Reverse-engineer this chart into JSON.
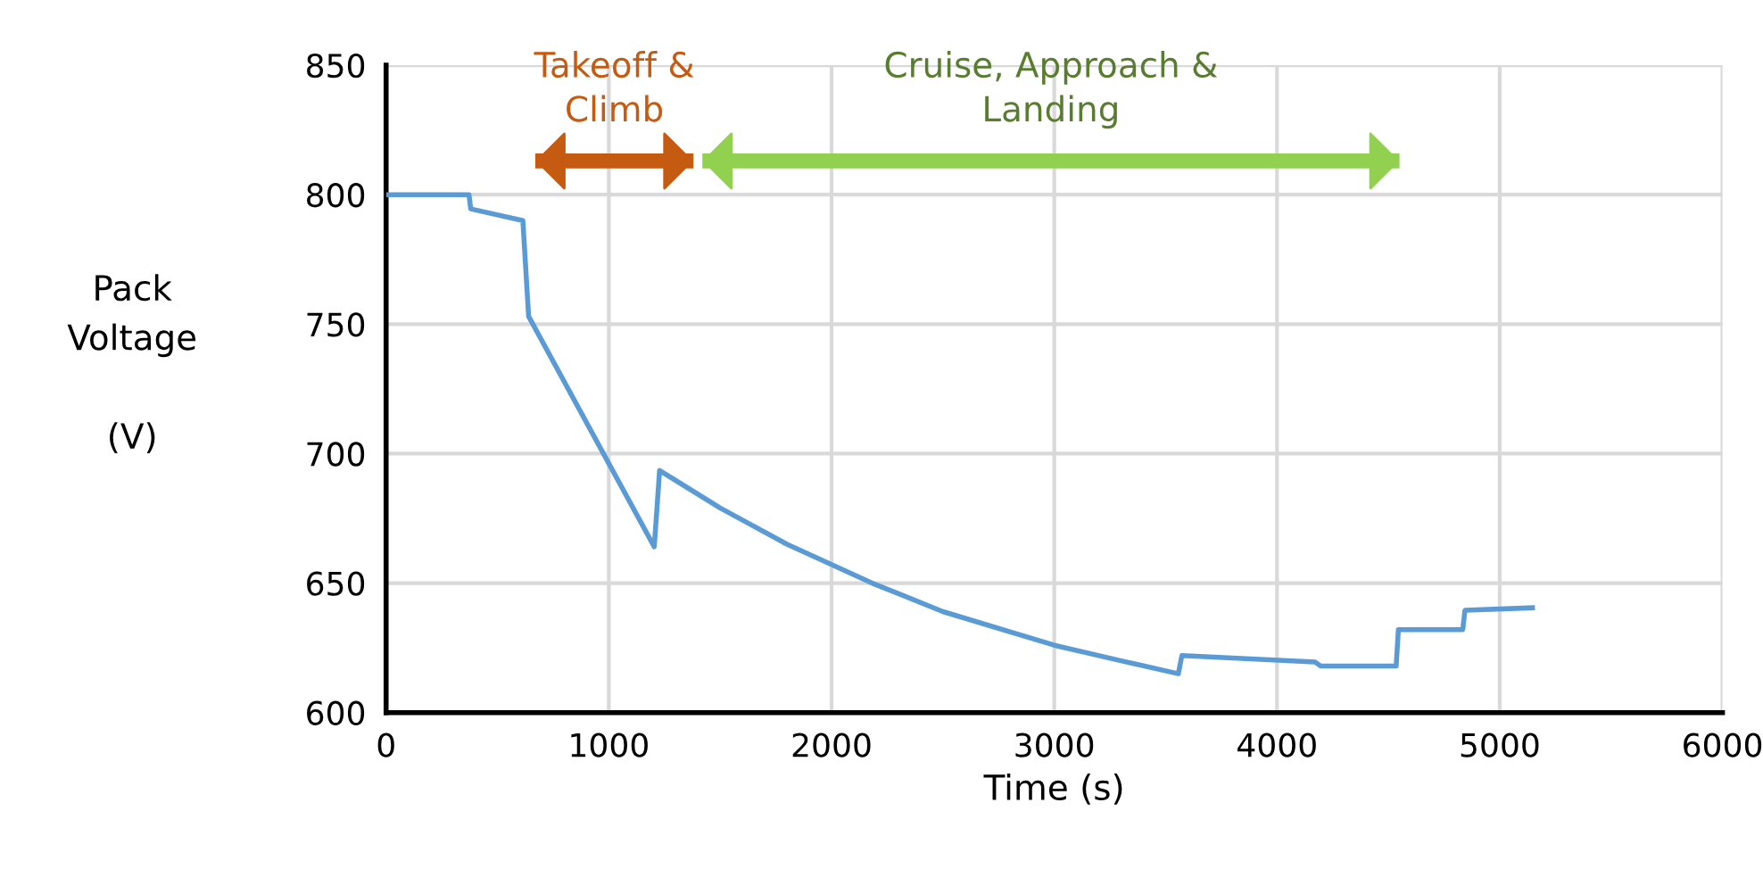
{
  "chart_data": {
    "type": "line",
    "xlabel": "Time (s)",
    "ylabel": "Pack\nVoltage\n\n(V)",
    "x": [
      0,
      372,
      380,
      614,
      640,
      1204,
      1228,
      1500,
      1800,
      2182,
      2500,
      3000,
      3300,
      3557,
      3573,
      4171,
      4196,
      4535,
      4545,
      4834,
      4844,
      5158
    ],
    "series": [
      {
        "color": "#5b9bd5",
        "values": [
          800,
          800,
          794.5,
          790,
          753,
          664,
          693.5,
          679,
          665,
          650,
          639,
          626,
          620,
          615,
          622,
          619.5,
          618,
          618,
          632,
          632,
          639.5,
          640.5
        ]
      },
      {
        "name": "Takeoff &\nClimb",
        "color": "#c55a11",
        "x": [
          670,
          1380
        ],
        "values": [
          813,
          813
        ]
      },
      {
        "name": "Cruise, Approach &\nLanding",
        "color": "#92d050",
        "x": [
          1420,
          4550
        ],
        "values": [
          813,
          813
        ]
      }
    ],
    "xlim": [
      0,
      6000
    ],
    "ylim": [
      600,
      850
    ],
    "xticks": [
      0,
      1000,
      2000,
      3000,
      4000,
      5000,
      6000
    ],
    "yticks": [
      600,
      650,
      700,
      750,
      800,
      850
    ],
    "grid": true,
    "marker": "none",
    "line_style": "solid"
  }
}
